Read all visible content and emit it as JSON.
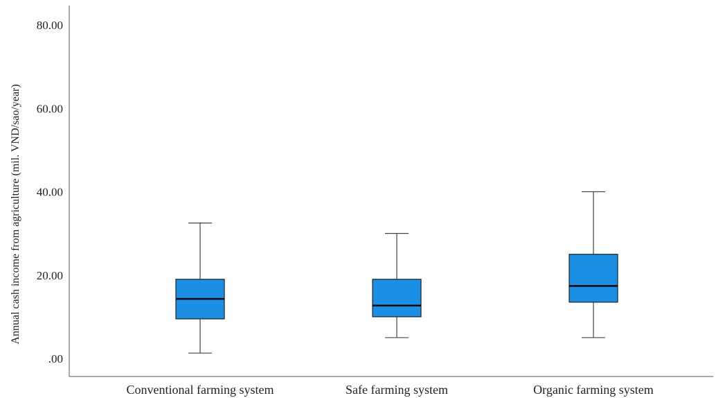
{
  "chart_data": {
    "type": "boxplot",
    "title": "",
    "xlabel": "",
    "ylabel": "Annual cash income from agriculture (mil. VND/sao/year)",
    "ylim": [
      0,
      84
    ],
    "yticks": [
      0,
      20,
      40,
      60,
      80
    ],
    "ytick_labels": [
      ".00",
      "20.00",
      "40.00",
      "60.00",
      "80.00"
    ],
    "grid": false,
    "legend": "none",
    "box_color": "#1a8fe3",
    "categories": [
      "Conventional farming system",
      "Safe farming system",
      "Organic farming system"
    ],
    "boxes": [
      {
        "category": "Conventional farming system",
        "whisker_low": 1.3,
        "q1": 9.5,
        "median": 14.3,
        "q3": 19.0,
        "whisker_high": 32.5
      },
      {
        "category": "Safe farming system",
        "whisker_low": 5.0,
        "q1": 10.0,
        "median": 12.7,
        "q3": 19.0,
        "whisker_high": 30.0
      },
      {
        "category": "Organic farming system",
        "whisker_low": 5.0,
        "q1": 13.5,
        "median": 17.4,
        "q3": 25.0,
        "whisker_high": 40.0
      }
    ]
  }
}
